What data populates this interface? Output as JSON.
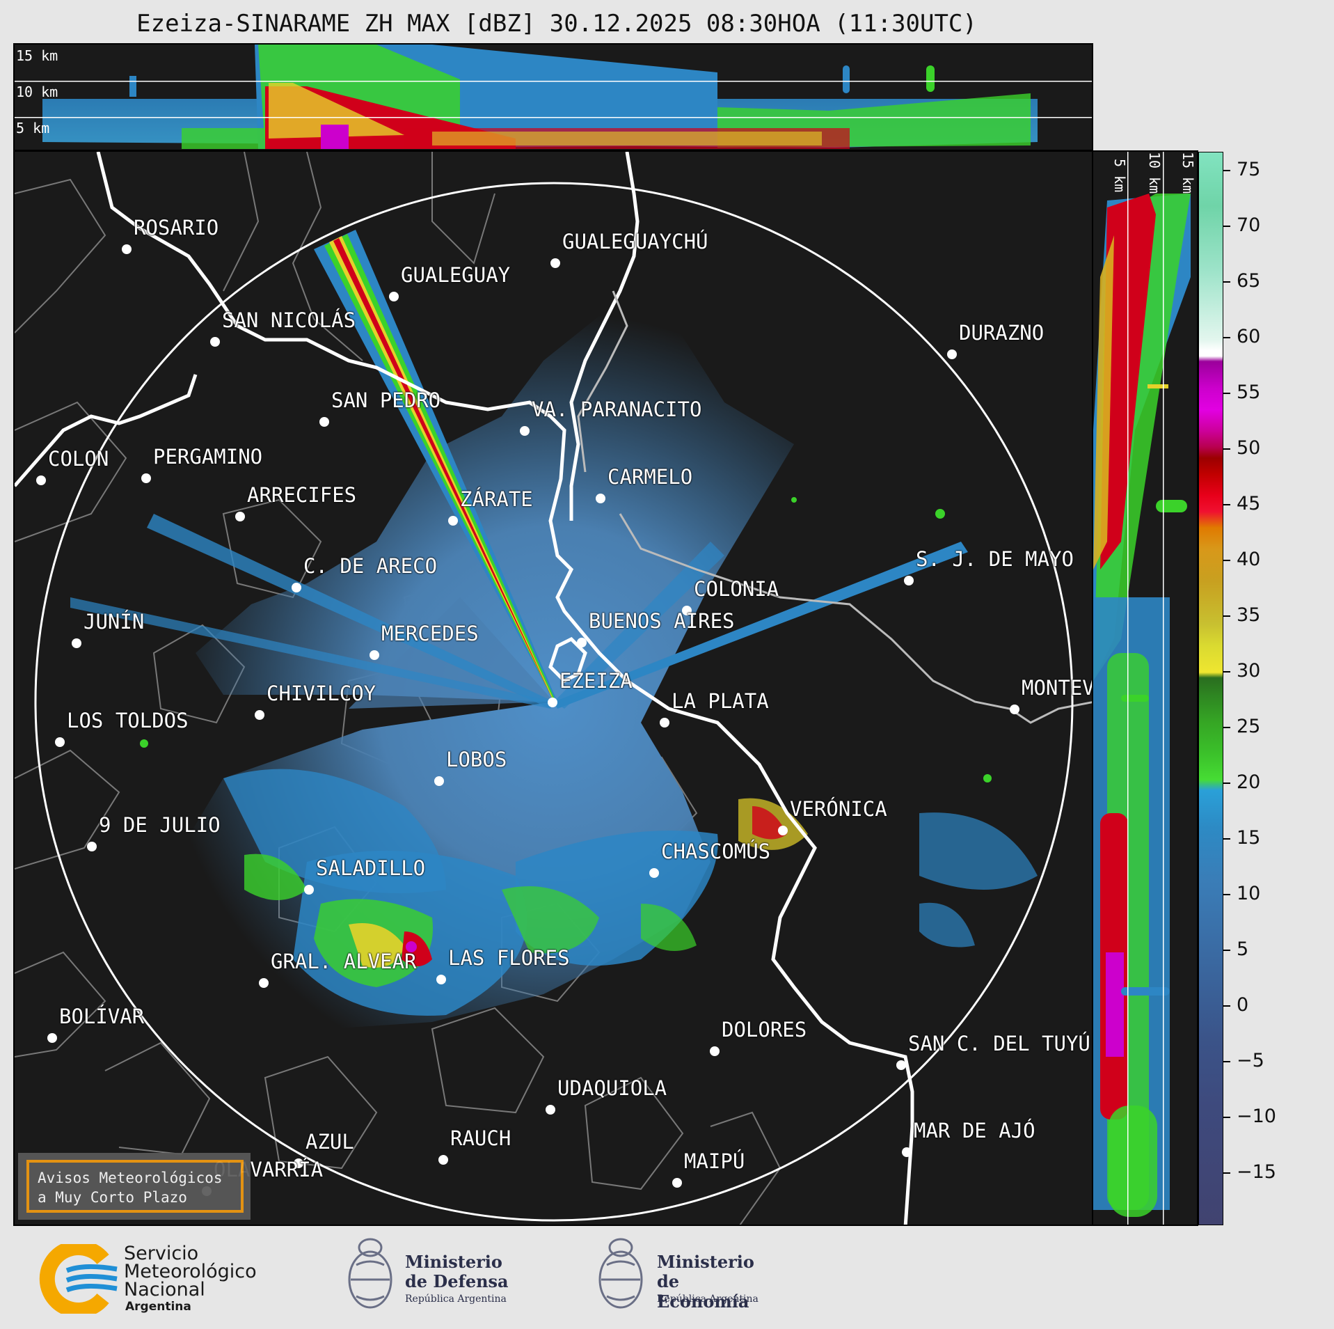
{
  "title": "Ezeiza-SINARAME ZH MAX [dBZ] 30.12.2025 08:30HOA (11:30UTC)",
  "top_panel": {
    "height_labels": [
      "15 km",
      "10 km",
      "5 km"
    ]
  },
  "side_panel": {
    "height_labels": [
      "5 km",
      "10 km",
      "15 km"
    ]
  },
  "colorbar": {
    "ticks": [
      "75",
      "70",
      "65",
      "60",
      "55",
      "50",
      "45",
      "40",
      "35",
      "30",
      "25",
      "20",
      "15",
      "10",
      "5",
      "0",
      "−5",
      "−10",
      "−15"
    ],
    "bands": [
      {
        "from": 60,
        "to": 77,
        "color": "#7fdcb4"
      },
      {
        "from": 58,
        "to": 60,
        "color": "#ffffff"
      },
      {
        "from": 50,
        "to": 58,
        "color": "#cc00cc"
      },
      {
        "from": 43,
        "to": 50,
        "color": "#d0001a"
      },
      {
        "from": 30,
        "to": 43,
        "color": "#d8b020"
      },
      {
        "from": 18,
        "to": 30,
        "color": "#38b820"
      },
      {
        "from": -20,
        "to": 18,
        "color": "#2d86c4"
      }
    ]
  },
  "cities": [
    {
      "name": "ROSARIO"
    },
    {
      "name": "GUALEGUAYCHÚ"
    },
    {
      "name": "GUALEGUAY"
    },
    {
      "name": "SAN NICOLÁS"
    },
    {
      "name": "DURAZNO"
    },
    {
      "name": "SAN PEDRO"
    },
    {
      "name": "VA. PARANACITO"
    },
    {
      "name": "COLON"
    },
    {
      "name": "PERGAMINO"
    },
    {
      "name": "CARMELO"
    },
    {
      "name": "ARRECIFES"
    },
    {
      "name": "ZÁRATE"
    },
    {
      "name": "S. J. DE MAYO"
    },
    {
      "name": "C. DE ARECO"
    },
    {
      "name": "COLONIA"
    },
    {
      "name": "JUNÍN"
    },
    {
      "name": "BUENOS AIRES"
    },
    {
      "name": "MERCEDES"
    },
    {
      "name": "MONTEV"
    },
    {
      "name": "EZEIZA"
    },
    {
      "name": "CHIVILCOY"
    },
    {
      "name": "LA PLATA"
    },
    {
      "name": "LOS TOLDOS"
    },
    {
      "name": "LOBOS"
    },
    {
      "name": "VERÓNICA"
    },
    {
      "name": "9 DE JULIO"
    },
    {
      "name": "CHASCOMÚS"
    },
    {
      "name": "SALADILLO"
    },
    {
      "name": "GRAL. ALVEAR"
    },
    {
      "name": "LAS FLORES"
    },
    {
      "name": "BOLÍVAR"
    },
    {
      "name": "DOLORES"
    },
    {
      "name": "SAN C. DEL TUYÚ"
    },
    {
      "name": "UDAQUIOLA"
    },
    {
      "name": "MAR DE AJÓ"
    },
    {
      "name": "AZUL"
    },
    {
      "name": "RAUCH"
    },
    {
      "name": "OLAVARRÍA"
    },
    {
      "name": "MAIPÚ"
    }
  ],
  "avisos": {
    "line1": "Avisos Meteorológicos",
    "line2": "a Muy Corto Plazo"
  },
  "logos": {
    "smn": {
      "line1": "Servicio",
      "line2": "Meteorológico",
      "line3": "Nacional",
      "line4": "Argentina"
    },
    "defensa": {
      "line1": "Ministerio",
      "line2": "de Defensa",
      "line3": "República Argentina"
    },
    "economia": {
      "line1": "Ministerio",
      "line2": "de Economía",
      "line3": "República Argentina"
    }
  },
  "colors": {
    "panel_bg": "#1a1a1a",
    "echo_light": "#2d86c4",
    "echo_weak": "#4a7fb0",
    "echo_green": "#3bd22a",
    "echo_yellow": "#e5d22a",
    "echo_red": "#d0001a",
    "echo_magenta": "#cc00cc",
    "smn_orange": "#f5a800",
    "smn_blue": "#1f8fd6"
  }
}
